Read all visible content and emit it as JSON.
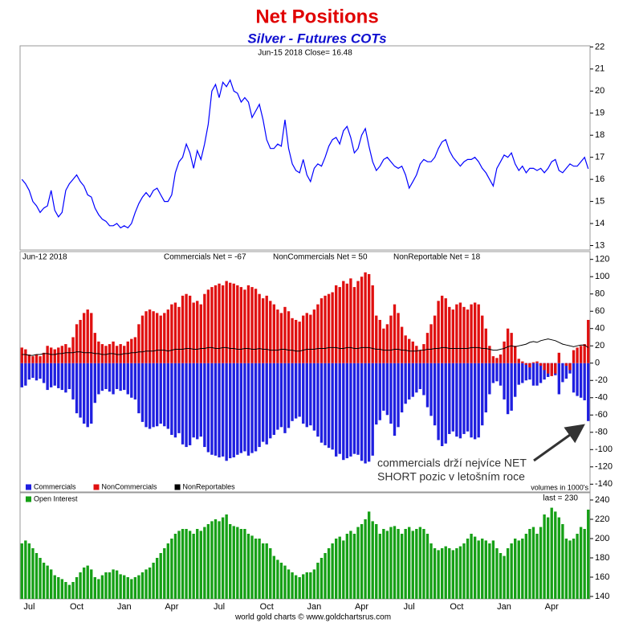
{
  "chart_data": [
    {
      "type": "line",
      "title": "Net Positions",
      "subtitle": "Silver - Futures COTs",
      "header": "Jun-15  2018   Close= 16.48",
      "color": "#0000ff",
      "values": [
        16.0,
        15.8,
        15.5,
        15.0,
        14.8,
        14.5,
        14.7,
        14.8,
        15.5,
        14.6,
        14.3,
        14.5,
        15.5,
        15.8,
        16.0,
        16.2,
        15.9,
        15.7,
        15.3,
        15.2,
        14.7,
        14.4,
        14.2,
        14.1,
        13.9,
        13.9,
        14.0,
        13.8,
        13.9,
        13.8,
        14.0,
        14.5,
        14.9,
        15.2,
        15.4,
        15.2,
        15.5,
        15.6,
        15.3,
        15.0,
        15.0,
        15.3,
        16.3,
        16.8,
        17.0,
        17.6,
        17.2,
        16.5,
        17.3,
        16.9,
        17.6,
        18.5,
        20.0,
        20.3,
        19.7,
        20.4,
        20.2,
        20.5,
        20.0,
        19.9,
        19.5,
        19.7,
        19.5,
        18.8,
        19.1,
        19.4,
        18.7,
        17.8,
        17.4,
        17.4,
        17.6,
        17.5,
        18.7,
        17.4,
        16.7,
        16.4,
        16.3,
        16.9,
        16.2,
        15.9,
        16.5,
        16.7,
        16.6,
        17.0,
        17.5,
        17.8,
        17.9,
        17.6,
        18.2,
        18.4,
        17.9,
        17.2,
        17.4,
        18.0,
        18.3,
        17.5,
        16.8,
        16.4,
        16.6,
        16.9,
        17.0,
        16.8,
        16.6,
        16.5,
        16.6,
        16.2,
        15.6,
        15.9,
        16.2,
        16.7,
        16.9,
        16.8,
        16.8,
        17.0,
        17.4,
        17.7,
        17.8,
        17.3,
        17.0,
        16.8,
        16.6,
        16.8,
        16.9,
        16.9,
        17.0,
        16.8,
        16.5,
        16.3,
        16.0,
        15.7,
        16.5,
        16.8,
        17.1,
        17.0,
        17.2,
        16.7,
        16.4,
        16.6,
        16.3,
        16.5,
        16.5,
        16.4,
        16.5,
        16.3,
        16.5,
        16.8,
        16.9,
        16.4,
        16.3,
        16.5,
        16.7,
        16.6,
        16.6,
        16.8,
        17.0,
        16.48
      ],
      "ylim": [
        12.8,
        22.05
      ],
      "yticks": [
        13,
        14,
        15,
        16,
        17,
        18,
        19,
        20,
        21,
        22
      ]
    },
    {
      "type": "bar",
      "header": "Jun-12  2018",
      "net_labels": [
        "Commercials Net = -67",
        "NonCommercials Net = 50",
        "NonReportable Net = 18"
      ],
      "legend": "bottom-left",
      "note": "volumes in 1000's",
      "annotation": [
        "commercials drží nejvíce NET",
        "SHORT pozic v letošním roce"
      ],
      "series": [
        {
          "name": "Commercials",
          "color": "#1f1fe0",
          "values": [
            -28,
            -26,
            -19,
            -17,
            -20,
            -18,
            -23,
            -31,
            -28,
            -26,
            -29,
            -31,
            -34,
            -30,
            -42,
            -58,
            -63,
            -70,
            -74,
            -70,
            -46,
            -36,
            -32,
            -30,
            -33,
            -36,
            -30,
            -32,
            -31,
            -36,
            -40,
            -42,
            -58,
            -68,
            -74,
            -76,
            -74,
            -73,
            -70,
            -73,
            -76,
            -83,
            -86,
            -81,
            -94,
            -97,
            -95,
            -86,
            -88,
            -85,
            -97,
            -103,
            -106,
            -107,
            -109,
            -108,
            -113,
            -110,
            -109,
            -106,
            -104,
            -102,
            -107,
            -104,
            -102,
            -97,
            -91,
            -94,
            -87,
            -83,
            -77,
            -74,
            -81,
            -75,
            -67,
            -64,
            -62,
            -70,
            -74,
            -72,
            -78,
            -85,
            -92,
            -95,
            -98,
            -100,
            -108,
            -105,
            -112,
            -110,
            -108,
            -105,
            -106,
            -113,
            -116,
            -114,
            -107,
            -71,
            -66,
            -55,
            -60,
            -70,
            -84,
            -74,
            -57,
            -47,
            -42,
            -39,
            -34,
            -30,
            -37,
            -51,
            -61,
            -72,
            -89,
            -96,
            -93,
            -82,
            -79,
            -85,
            -87,
            -82,
            -79,
            -86,
            -88,
            -86,
            -72,
            -57,
            -36,
            -23,
            -21,
            -26,
            -42,
            -59,
            -55,
            -39,
            -25,
            -23,
            -20,
            -19,
            -26,
            -26,
            -23,
            -19,
            -16,
            -12,
            -14,
            -36,
            -22,
            -18,
            -12,
            -34,
            -38,
            -40,
            -43,
            -67
          ]
        },
        {
          "name": "NonCommercials",
          "color": "#e01010",
          "values": [
            18,
            16,
            10,
            8,
            10,
            8,
            12,
            20,
            18,
            16,
            18,
            20,
            22,
            18,
            30,
            45,
            50,
            58,
            62,
            58,
            35,
            25,
            22,
            20,
            22,
            25,
            20,
            22,
            20,
            25,
            28,
            30,
            45,
            55,
            60,
            62,
            60,
            58,
            55,
            58,
            62,
            68,
            70,
            65,
            78,
            80,
            78,
            70,
            72,
            68,
            80,
            85,
            88,
            90,
            92,
            90,
            95,
            93,
            92,
            90,
            88,
            85,
            90,
            88,
            86,
            80,
            75,
            78,
            72,
            68,
            62,
            58,
            65,
            60,
            52,
            50,
            48,
            55,
            58,
            56,
            62,
            68,
            75,
            78,
            80,
            82,
            90,
            88,
            95,
            92,
            98,
            88,
            95,
            100,
            105,
            103,
            90,
            55,
            50,
            40,
            45,
            55,
            68,
            58,
            42,
            32,
            28,
            25,
            20,
            15,
            22,
            35,
            45,
            55,
            72,
            78,
            75,
            65,
            62,
            68,
            70,
            65,
            62,
            68,
            70,
            68,
            55,
            40,
            20,
            8,
            6,
            10,
            25,
            40,
            35,
            20,
            5,
            2,
            -2,
            -5,
            1,
            2,
            -3,
            -8,
            -12,
            -15,
            -12,
            12,
            0,
            -3,
            -8,
            15,
            18,
            20,
            22,
            50
          ]
        },
        {
          "name": "NonReportables",
          "color": "#000000",
          "kind": "line",
          "values": [
            10,
            10,
            9,
            9,
            10,
            10,
            11,
            11,
            10,
            10,
            11,
            11,
            12,
            12,
            12,
            13,
            13,
            12,
            12,
            12,
            11,
            11,
            10,
            10,
            11,
            11,
            10,
            10,
            11,
            11,
            12,
            12,
            13,
            13,
            14,
            14,
            14,
            15,
            15,
            15,
            14,
            15,
            16,
            16,
            16,
            17,
            17,
            16,
            16,
            17,
            17,
            18,
            18,
            17,
            17,
            18,
            18,
            17,
            17,
            16,
            16,
            17,
            17,
            16,
            16,
            17,
            16,
            16,
            15,
            15,
            15,
            16,
            16,
            15,
            15,
            14,
            14,
            15,
            16,
            16,
            16,
            17,
            17,
            17,
            18,
            18,
            18,
            17,
            17,
            18,
            18,
            17,
            17,
            18,
            18,
            18,
            17,
            16,
            16,
            15,
            15,
            15,
            16,
            16,
            15,
            15,
            14,
            14,
            14,
            15,
            15,
            16,
            16,
            17,
            17,
            18,
            18,
            17,
            17,
            17,
            17,
            17,
            17,
            18,
            18,
            18,
            17,
            17,
            16,
            15,
            15,
            16,
            17,
            19,
            20,
            19,
            20,
            21,
            22,
            24,
            25,
            24,
            26,
            27,
            28,
            27,
            26,
            24,
            22,
            21,
            20,
            19,
            20,
            21,
            21,
            18
          ]
        }
      ],
      "ylim": [
        -149,
        129
      ],
      "yticks": [
        -140,
        -120,
        -100,
        -80,
        -60,
        -40,
        -20,
        0,
        20,
        40,
        60,
        80,
        100,
        120
      ]
    },
    {
      "type": "bar",
      "legend": "top-left",
      "label": "last = 230",
      "footer": "world gold charts © www.goldchartsrus.com",
      "series": [
        {
          "name": "Open Interest",
          "color": "#16a016",
          "values": [
            195,
            198,
            195,
            190,
            185,
            180,
            175,
            172,
            168,
            162,
            160,
            158,
            155,
            152,
            155,
            160,
            165,
            170,
            172,
            168,
            160,
            158,
            162,
            165,
            165,
            168,
            167,
            163,
            162,
            160,
            158,
            160,
            162,
            165,
            168,
            170,
            175,
            180,
            185,
            190,
            195,
            200,
            205,
            208,
            210,
            210,
            208,
            205,
            210,
            208,
            212,
            215,
            218,
            220,
            218,
            222,
            225,
            215,
            213,
            212,
            210,
            210,
            205,
            203,
            200,
            200,
            195,
            195,
            190,
            182,
            178,
            175,
            172,
            168,
            165,
            162,
            160,
            163,
            165,
            165,
            168,
            175,
            180,
            185,
            190,
            195,
            200,
            202,
            198,
            205,
            208,
            205,
            212,
            215,
            220,
            228,
            218,
            215,
            205,
            210,
            208,
            212,
            213,
            210,
            205,
            210,
            212,
            208,
            210,
            212,
            210,
            205,
            195,
            190,
            188,
            190,
            192,
            190,
            188,
            190,
            192,
            195,
            200,
            205,
            202,
            198,
            200,
            198,
            195,
            198,
            190,
            185,
            182,
            190,
            195,
            200,
            198,
            200,
            205,
            210,
            212,
            205,
            212,
            225,
            222,
            232,
            228,
            222,
            215,
            200,
            198,
            200,
            205,
            212,
            210,
            230
          ]
        }
      ],
      "categories": [
        null,
        null,
        "Jul",
        null,
        null,
        null,
        null,
        null,
        null,
        null,
        null,
        null,
        null,
        null,
        null,
        "Oct",
        null,
        null,
        null,
        null,
        null,
        null,
        null,
        null,
        null,
        null,
        null,
        null,
        "Jan",
        null,
        null,
        null,
        null,
        null,
        null,
        null,
        null,
        null,
        null,
        null,
        null,
        "Apr",
        null,
        null,
        null,
        null,
        null,
        null,
        null,
        null,
        null,
        null,
        null,
        null,
        "Jul",
        null,
        null,
        null,
        null,
        null,
        null,
        null,
        null,
        null,
        null,
        null,
        null,
        "Oct",
        null,
        null,
        null,
        null,
        null,
        null,
        null,
        null,
        null,
        null,
        null,
        null,
        "Jan",
        null,
        null,
        null,
        null,
        null,
        null,
        null,
        null,
        null,
        null,
        null,
        null,
        "Apr",
        null,
        null,
        null,
        null,
        null,
        null,
        null,
        null,
        null,
        null,
        null,
        null,
        "Jul",
        null,
        null,
        null,
        null,
        null,
        null,
        null,
        null,
        null,
        null,
        null,
        null,
        "Oct",
        null,
        null,
        null,
        null,
        null,
        null,
        null,
        null,
        null,
        null,
        null,
        null,
        "Jan",
        null,
        null,
        null,
        null,
        null,
        null,
        null,
        null,
        null,
        null,
        null,
        null,
        "Apr",
        null,
        null,
        null,
        null,
        null,
        null,
        null,
        null,
        null,
        null
      ],
      "ylim": [
        137.5,
        247.5
      ],
      "yticks": [
        140,
        160,
        180,
        200,
        220,
        240
      ]
    }
  ]
}
